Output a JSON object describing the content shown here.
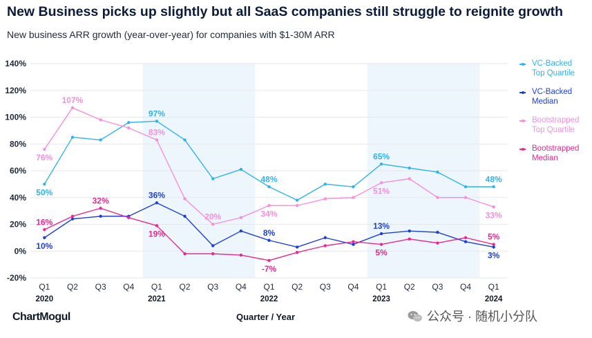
{
  "title": "New Business picks up slightly but all SaaS companies still struggle to reignite growth",
  "subtitle": "New business ARR growth (year-over-year) for companies with $1-30M ARR",
  "brand": "ChartMogul",
  "watermark": "公众号 · 随机小分队",
  "colors": {
    "vc_top": "#2fb3ea",
    "vc_median": "#1e3fd6",
    "boot_top": "#f58fdc",
    "boot_median": "#e8288f",
    "band": "#eef6fd",
    "grid": "#e5e7eb",
    "text": "#111827"
  },
  "chart_data": {
    "type": "line",
    "xlabel": "Quarter / Year",
    "ylabel": "",
    "ylim": [
      -20,
      140
    ],
    "yticks": [
      -20,
      0,
      20,
      40,
      60,
      80,
      100,
      120,
      140
    ],
    "ytick_labels": [
      "-20%",
      "0%",
      "20%",
      "40%",
      "60%",
      "80%",
      "100%",
      "120%",
      "140%"
    ],
    "categories": [
      "Q1",
      "Q2",
      "Q3",
      "Q4",
      "Q1",
      "Q2",
      "Q3",
      "Q4",
      "Q1",
      "Q2",
      "Q3",
      "Q4",
      "Q1",
      "Q2",
      "Q3",
      "Q4",
      "Q1"
    ],
    "years": [
      {
        "label": "2020",
        "index": 0
      },
      {
        "label": "2021",
        "index": 4
      },
      {
        "label": "2022",
        "index": 8
      },
      {
        "label": "2023",
        "index": 12
      },
      {
        "label": "2024",
        "index": 16
      }
    ],
    "shaded_years": [
      [
        4,
        7
      ],
      [
        12,
        15
      ]
    ],
    "grid": true,
    "legend_position": "right",
    "series": [
      {
        "key": "vc_top",
        "name": "VC-Backed Top Quartile",
        "legend_lines": [
          "VC-Backed",
          "Top Quartile"
        ],
        "color": "#2fb3ea",
        "values": [
          50,
          85,
          83,
          96,
          97,
          83,
          54,
          61,
          48,
          38,
          50,
          48,
          65,
          62,
          59,
          48,
          48
        ]
      },
      {
        "key": "vc_median",
        "name": "VC-Backed Median",
        "legend_lines": [
          "VC-Backed",
          "Median"
        ],
        "color": "#1e3fd6",
        "values": [
          10,
          24,
          26,
          26,
          36,
          26,
          4,
          15,
          8,
          3,
          10,
          5,
          13,
          15,
          14,
          7,
          3
        ]
      },
      {
        "key": "boot_top",
        "name": "Bootstrapped Top Quartile",
        "legend_lines": [
          "Bootstrapped",
          "Top Quartile"
        ],
        "color": "#f58fdc",
        "values": [
          76,
          107,
          98,
          92,
          83,
          39,
          20,
          25,
          34,
          34,
          39,
          40,
          51,
          54,
          40,
          40,
          33
        ]
      },
      {
        "key": "boot_median",
        "name": "Bootstrapped Median",
        "legend_lines": [
          "Bootstrapped",
          "Median"
        ],
        "color": "#e8288f",
        "values": [
          16,
          26,
          32,
          25,
          19,
          -2,
          -2,
          -3,
          -7,
          -1,
          4,
          7,
          5,
          9,
          6,
          10,
          5
        ]
      }
    ],
    "annotations": [
      {
        "series": "vc_top",
        "index": 0,
        "text": "50%",
        "pos": "below"
      },
      {
        "series": "vc_top",
        "index": 4,
        "text": "97%",
        "pos": "above"
      },
      {
        "series": "vc_top",
        "index": 8,
        "text": "48%",
        "pos": "above"
      },
      {
        "series": "vc_top",
        "index": 12,
        "text": "65%",
        "pos": "above"
      },
      {
        "series": "vc_top",
        "index": 16,
        "text": "48%",
        "pos": "above"
      },
      {
        "series": "vc_median",
        "index": 0,
        "text": "10%",
        "pos": "below"
      },
      {
        "series": "vc_median",
        "index": 4,
        "text": "36%",
        "pos": "above"
      },
      {
        "series": "vc_median",
        "index": 8,
        "text": "8%",
        "pos": "above"
      },
      {
        "series": "vc_median",
        "index": 12,
        "text": "13%",
        "pos": "above"
      },
      {
        "series": "vc_median",
        "index": 16,
        "text": "3%",
        "pos": "below"
      },
      {
        "series": "boot_top",
        "index": 0,
        "text": "76%",
        "pos": "below"
      },
      {
        "series": "boot_top",
        "index": 1,
        "text": "107%",
        "pos": "above"
      },
      {
        "series": "boot_top",
        "index": 4,
        "text": "83%",
        "pos": "above"
      },
      {
        "series": "boot_top",
        "index": 6,
        "text": "20%",
        "pos": "above"
      },
      {
        "series": "boot_top",
        "index": 8,
        "text": "34%",
        "pos": "below"
      },
      {
        "series": "boot_top",
        "index": 12,
        "text": "51%",
        "pos": "below"
      },
      {
        "series": "boot_top",
        "index": 16,
        "text": "33%",
        "pos": "below"
      },
      {
        "series": "boot_median",
        "index": 0,
        "text": "16%",
        "pos": "above"
      },
      {
        "series": "boot_median",
        "index": 2,
        "text": "32%",
        "pos": "above"
      },
      {
        "series": "boot_median",
        "index": 4,
        "text": "19%",
        "pos": "below"
      },
      {
        "series": "boot_median",
        "index": 8,
        "text": "-7%",
        "pos": "below"
      },
      {
        "series": "boot_median",
        "index": 12,
        "text": "5%",
        "pos": "below"
      },
      {
        "series": "boot_median",
        "index": 16,
        "text": "5%",
        "pos": "above"
      }
    ]
  }
}
